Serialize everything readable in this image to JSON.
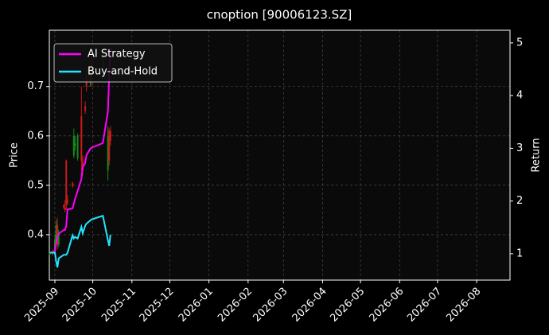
{
  "chart_data": {
    "type": "candlestick",
    "title": "cnoption [90006123.SZ]",
    "ylabel": "Price",
    "y2label": "Return",
    "x": [
      -4,
      -2,
      0,
      1,
      2,
      3,
      7,
      8,
      9,
      10,
      14,
      15,
      16,
      18,
      21,
      22,
      24,
      25,
      28,
      29,
      38,
      42,
      43,
      44
    ],
    "xlim": [
      -4.4,
      360.4
    ],
    "xticks": [
      {
        "value": 0,
        "label": "2025-09"
      },
      {
        "value": 30,
        "label": "2025-10"
      },
      {
        "value": 61,
        "label": "2025-11"
      },
      {
        "value": 91,
        "label": "2025-12"
      },
      {
        "value": 122,
        "label": "2026-01"
      },
      {
        "value": 153,
        "label": "2026-02"
      },
      {
        "value": 181,
        "label": "2026-03"
      },
      {
        "value": 212,
        "label": "2026-04"
      },
      {
        "value": 242,
        "label": "2026-05"
      },
      {
        "value": 273,
        "label": "2026-06"
      },
      {
        "value": 303,
        "label": "2026-07"
      },
      {
        "value": 334,
        "label": "2026-08"
      }
    ],
    "ylim": [
      0.308,
      0.814
    ],
    "yticks": [
      0.4,
      0.5,
      0.6,
      0.7
    ],
    "y2lim": [
      0.5,
      5.24
    ],
    "y2ticks": [
      1,
      2,
      3,
      4,
      5
    ],
    "open": [
      0.36,
      0.362,
      0.36,
      0.39,
      0.42,
      0.38,
      0.46,
      0.455,
      0.55,
      0.47,
      0.505,
      0.56,
      0.58,
      0.555,
      0.64,
      0.55,
      0.66,
      0.72,
      0.71,
      0.75,
      0.74,
      0.53,
      0.61,
      0.61
    ],
    "high": [
      0.365,
      0.37,
      0.4,
      0.43,
      0.435,
      0.41,
      0.462,
      0.47,
      0.552,
      0.48,
      0.507,
      0.615,
      0.6,
      0.605,
      0.7,
      0.56,
      0.67,
      0.74,
      0.73,
      0.765,
      0.77,
      0.62,
      0.615,
      0.62
    ],
    "low": [
      0.355,
      0.358,
      0.355,
      0.38,
      0.37,
      0.375,
      0.452,
      0.445,
      0.45,
      0.46,
      0.495,
      0.555,
      0.57,
      0.55,
      0.53,
      0.52,
      0.645,
      0.69,
      0.7,
      0.7,
      0.73,
      0.51,
      0.54,
      0.58
    ],
    "close": [
      0.362,
      0.36,
      0.39,
      0.42,
      0.38,
      0.4,
      0.455,
      0.45,
      0.46,
      0.465,
      0.498,
      0.6,
      0.585,
      0.6,
      0.55,
      0.53,
      0.65,
      0.7,
      0.725,
      0.72,
      0.76,
      0.6,
      0.55,
      0.59
    ],
    "up_color": "#1a8a1a",
    "down_color": "#cc1a1a",
    "series": [
      {
        "name": "AI Strategy",
        "color": "#ff00ff",
        "axis": "y2",
        "values": [
          1.02,
          1.02,
          1.05,
          1.21,
          1.32,
          1.38,
          1.45,
          1.45,
          1.53,
          1.84,
          1.86,
          1.95,
          2.04,
          2.19,
          2.42,
          2.64,
          2.72,
          2.87,
          2.99,
          3.01,
          3.1,
          3.7,
          4.38,
          4.91
        ]
      },
      {
        "name": "Buy-and-Hold",
        "color": "#22e5ff",
        "axis": "y2",
        "values": [
          1.02,
          1.02,
          1.02,
          0.86,
          0.74,
          0.91,
          0.98,
          0.98,
          0.98,
          1.02,
          1.35,
          1.29,
          1.32,
          1.29,
          1.51,
          1.39,
          1.53,
          1.57,
          1.63,
          1.65,
          1.72,
          1.26,
          1.15,
          1.36
        ]
      }
    ],
    "grid": true,
    "legend": "upper left"
  }
}
